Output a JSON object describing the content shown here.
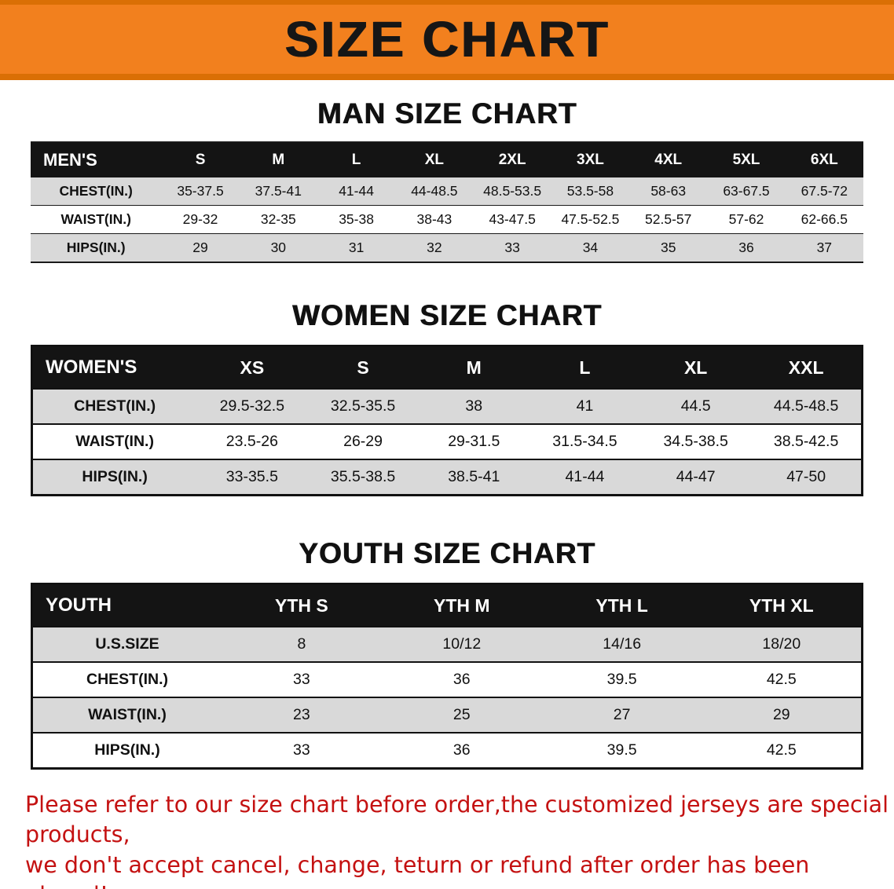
{
  "banner": {
    "title": "SIZE CHART"
  },
  "colors": {
    "banner_orange": "#F2801E",
    "banner_edge_orange": "#DA6F05",
    "table_header_black": "#141414",
    "row_stripe_gray": "#D9D9D9",
    "notice_red": "#C41111"
  },
  "chart_data": [
    {
      "type": "table",
      "title": "MAN SIZE CHART",
      "header": [
        "MEN'S",
        "S",
        "M",
        "L",
        "XL",
        "2XL",
        "3XL",
        "4XL",
        "5XL",
        "6XL"
      ],
      "rows": [
        [
          "CHEST(IN.)",
          "35-37.5",
          "37.5-41",
          "41-44",
          "44-48.5",
          "48.5-53.5",
          "53.5-58",
          "58-63",
          "63-67.5",
          "67.5-72"
        ],
        [
          "WAIST(IN.)",
          "29-32",
          "32-35",
          "35-38",
          "38-43",
          "43-47.5",
          "47.5-52.5",
          "52.5-57",
          "57-62",
          "62-66.5"
        ],
        [
          "HIPS(IN.)",
          "29",
          "30",
          "31",
          "32",
          "33",
          "34",
          "35",
          "36",
          "37"
        ]
      ]
    },
    {
      "type": "table",
      "title": "WOMEN SIZE CHART",
      "header": [
        "WOMEN'S",
        "XS",
        "S",
        "M",
        "L",
        "XL",
        "XXL"
      ],
      "rows": [
        [
          "CHEST(IN.)",
          "29.5-32.5",
          "32.5-35.5",
          "38",
          "41",
          "44.5",
          "44.5-48.5"
        ],
        [
          "WAIST(IN.)",
          "23.5-26",
          "26-29",
          "29-31.5",
          "31.5-34.5",
          "34.5-38.5",
          "38.5-42.5"
        ],
        [
          "HIPS(IN.)",
          "33-35.5",
          "35.5-38.5",
          "38.5-41",
          "41-44",
          "44-47",
          "47-50"
        ]
      ]
    },
    {
      "type": "table",
      "title": "YOUTH SIZE CHART",
      "header": [
        "YOUTH",
        "YTH S",
        "YTH M",
        "YTH L",
        "YTH XL"
      ],
      "rows": [
        [
          "U.S.SIZE",
          "8",
          "10/12",
          "14/16",
          "18/20"
        ],
        [
          "CHEST(IN.)",
          "33",
          "36",
          "39.5",
          "42.5"
        ],
        [
          "WAIST(IN.)",
          "23",
          "25",
          "27",
          "29"
        ],
        [
          "HIPS(IN.)",
          "33",
          "36",
          "39.5",
          "42.5"
        ]
      ]
    }
  ],
  "footer": {
    "line1": "Please refer to our size chart before order,the customized jerseys are special products,",
    "line2": "we don't accept cancel, change, teturn or refund after order has been placed!"
  }
}
